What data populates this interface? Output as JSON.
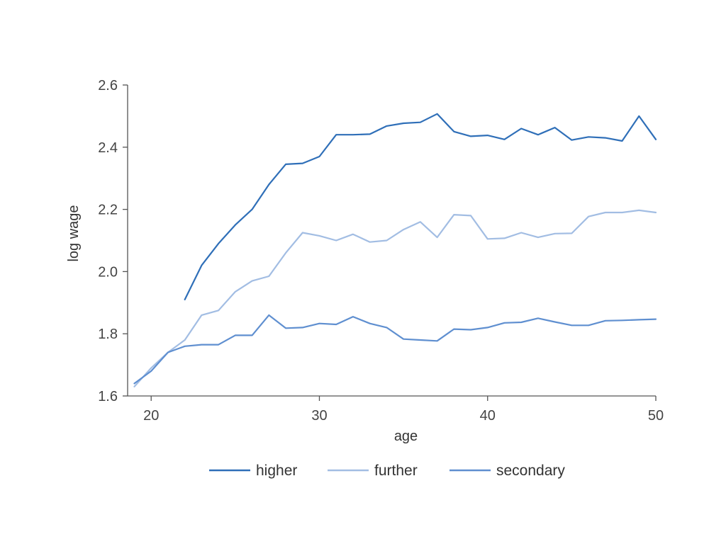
{
  "chart_data": {
    "type": "line",
    "title": "",
    "xlabel": "age",
    "ylabel": "log wage",
    "xlim": [
      18.6,
      50
    ],
    "ylim": [
      1.6,
      2.6
    ],
    "xticks": [
      20,
      30,
      40,
      50
    ],
    "yticks": [
      1.6,
      1.8,
      2.0,
      2.2,
      2.4,
      2.6
    ],
    "xtick_labels": [
      "20",
      "30",
      "40",
      "50"
    ],
    "ytick_labels": [
      "1.6",
      "1.8",
      "2.0",
      "2.2",
      "2.4",
      "2.6"
    ],
    "grid": false,
    "legend": {
      "position": "bottom"
    },
    "series": [
      {
        "name": "higher",
        "color": "#2f6fb8",
        "x": [
          22,
          23,
          24,
          25,
          26,
          27,
          28,
          29,
          30,
          31,
          32,
          33,
          34,
          35,
          36,
          37,
          38,
          39,
          40,
          41,
          42,
          43,
          44,
          45,
          46,
          47,
          48,
          49,
          50
        ],
        "y": [
          1.91,
          2.02,
          2.09,
          2.15,
          2.2,
          2.28,
          2.345,
          2.348,
          2.37,
          2.44,
          2.44,
          2.442,
          2.468,
          2.477,
          2.48,
          2.507,
          2.45,
          2.435,
          2.438,
          2.425,
          2.46,
          2.44,
          2.463,
          2.423,
          2.433,
          2.43,
          2.42,
          2.5,
          2.425
        ]
      },
      {
        "name": "further",
        "color": "#a2bde3",
        "x": [
          19,
          20,
          21,
          22,
          23,
          24,
          25,
          26,
          27,
          28,
          29,
          30,
          31,
          32,
          33,
          34,
          35,
          36,
          37,
          38,
          39,
          40,
          41,
          42,
          43,
          44,
          45,
          46,
          47,
          48,
          49,
          50
        ],
        "y": [
          1.63,
          1.69,
          1.74,
          1.78,
          1.86,
          1.875,
          1.935,
          1.97,
          1.985,
          2.06,
          2.125,
          2.115,
          2.1,
          2.12,
          2.095,
          2.1,
          2.135,
          2.16,
          2.11,
          2.183,
          2.18,
          2.105,
          2.107,
          2.125,
          2.11,
          2.122,
          2.123,
          2.177,
          2.19,
          2.19,
          2.197,
          2.19
        ]
      },
      {
        "name": "secondary",
        "color": "#5f8fd0",
        "x": [
          19,
          20,
          21,
          22,
          23,
          24,
          25,
          26,
          27,
          28,
          29,
          30,
          31,
          32,
          33,
          34,
          35,
          36,
          37,
          38,
          39,
          40,
          41,
          42,
          43,
          44,
          45,
          46,
          47,
          48,
          49,
          50
        ],
        "y": [
          1.64,
          1.68,
          1.74,
          1.76,
          1.765,
          1.765,
          1.795,
          1.795,
          1.86,
          1.818,
          1.82,
          1.833,
          1.83,
          1.855,
          1.833,
          1.82,
          1.783,
          1.78,
          1.777,
          1.815,
          1.813,
          1.82,
          1.835,
          1.837,
          1.85,
          1.838,
          1.827,
          1.827,
          1.842,
          1.843,
          1.845,
          1.847
        ]
      }
    ]
  }
}
